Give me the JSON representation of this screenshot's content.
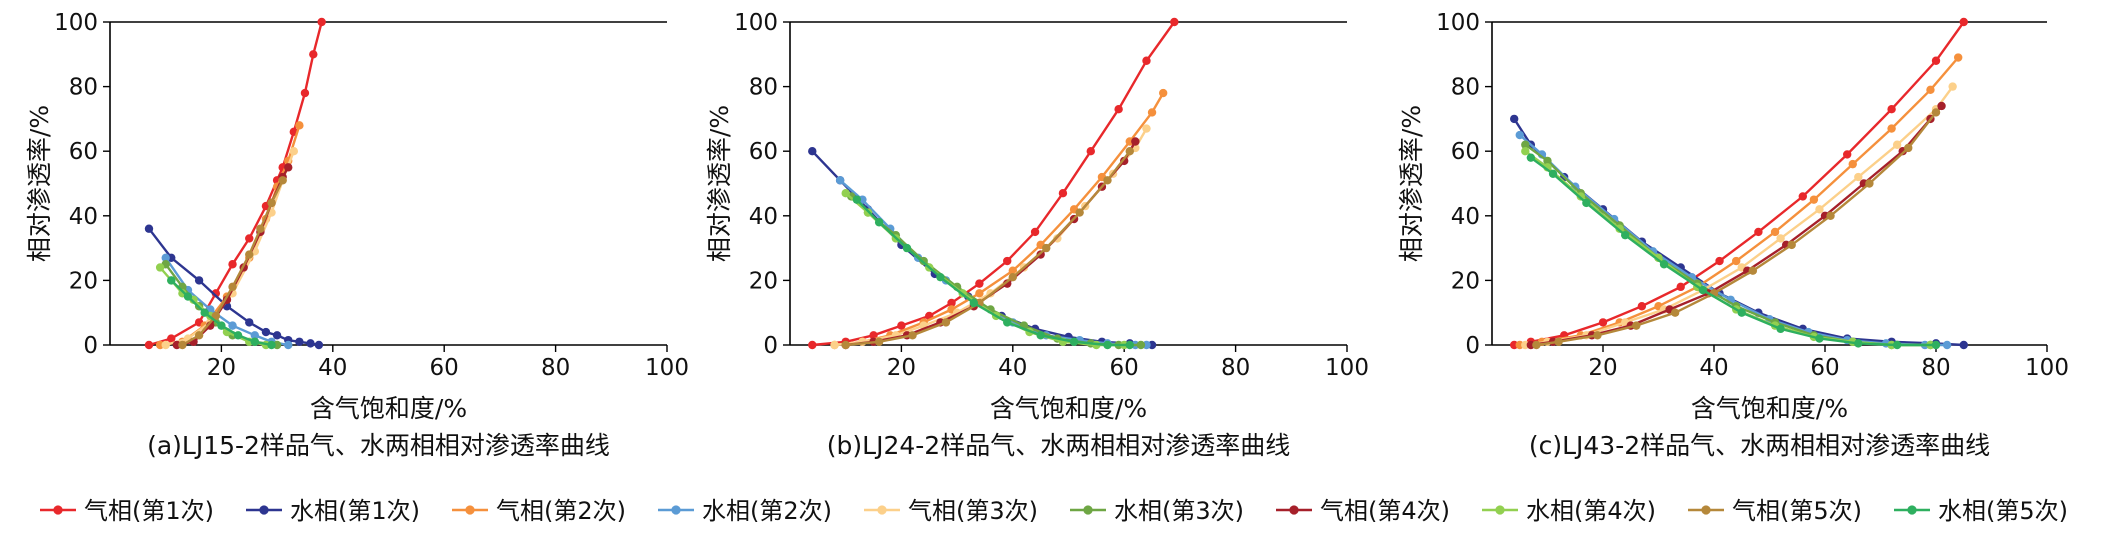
{
  "colors": {
    "gas1": "#e8282b",
    "water1": "#2d3590",
    "gas2": "#f5903c",
    "water2": "#5b9bd5",
    "gas3": "#fcd08a",
    "water3": "#6ea644",
    "gas4": "#a6202a",
    "water4": "#92d050",
    "gas5": "#b5883a",
    "water5": "#2eaf5f"
  },
  "legend": [
    {
      "label": "气相(第1次)",
      "color_key": "gas1"
    },
    {
      "label": "水相(第1次)",
      "color_key": "water1"
    },
    {
      "label": "气相(第2次)",
      "color_key": "gas2"
    },
    {
      "label": "水相(第2次)",
      "color_key": "water2"
    },
    {
      "label": "气相(第3次)",
      "color_key": "gas3"
    },
    {
      "label": "水相(第3次)",
      "color_key": "water3"
    },
    {
      "label": "气相(第4次)",
      "color_key": "gas4"
    },
    {
      "label": "水相(第4次)",
      "color_key": "water4"
    },
    {
      "label": "气相(第5次)",
      "color_key": "gas5"
    },
    {
      "label": "水相(第5次)",
      "color_key": "water5"
    }
  ],
  "chart_data": [
    {
      "type": "line",
      "caption": "(a)LJ15-2样品气、水两相相对渗透率曲线",
      "xlabel": "含气饱和度/%",
      "ylabel": "相对渗透率/%",
      "xlim": [
        0,
        100
      ],
      "ylim": [
        0,
        100
      ],
      "xticks": [
        20,
        40,
        60,
        80,
        100
      ],
      "yticks": [
        0,
        20,
        40,
        60,
        80,
        100
      ],
      "series": [
        {
          "name": "气相(第1次)",
          "color_key": "gas1",
          "x": [
            7,
            11,
            16,
            19,
            22,
            25,
            28,
            30,
            31,
            33,
            35,
            36.5,
            38
          ],
          "y": [
            0,
            2,
            7,
            16,
            25,
            33,
            43,
            51,
            55,
            66,
            78,
            90,
            100
          ]
        },
        {
          "name": "水相(第1次)",
          "color_key": "water1",
          "x": [
            7,
            11,
            16,
            21,
            25,
            28,
            30,
            32,
            34,
            36,
            37.5
          ],
          "y": [
            36,
            27,
            20,
            12,
            7,
            4,
            3,
            1.5,
            1,
            0.5,
            0
          ]
        },
        {
          "name": "气相(第2次)",
          "color_key": "gas2",
          "x": [
            9,
            13,
            17,
            21,
            25,
            28,
            30,
            32,
            34
          ],
          "y": [
            0,
            1,
            6,
            15,
            27,
            39,
            49,
            57,
            68
          ]
        },
        {
          "name": "水相(第2次)",
          "color_key": "water2",
          "x": [
            10,
            14,
            18,
            22,
            26,
            29,
            32
          ],
          "y": [
            27,
            17,
            11,
            6,
            3,
            1,
            0
          ]
        },
        {
          "name": "气相(第3次)",
          "color_key": "gas3",
          "x": [
            10,
            14,
            18,
            22,
            26,
            29,
            31,
            33
          ],
          "y": [
            0,
            2,
            7,
            16,
            29,
            41,
            51,
            60
          ]
        },
        {
          "name": "水相(第3次)",
          "color_key": "water3",
          "x": [
            10,
            13,
            16,
            19,
            22,
            26,
            30
          ],
          "y": [
            25,
            18,
            12,
            7,
            3,
            1,
            0
          ]
        },
        {
          "name": "气相(第4次)",
          "color_key": "gas4",
          "x": [
            12,
            15,
            18,
            21,
            24,
            27,
            29,
            31,
            32
          ],
          "y": [
            0,
            1,
            6,
            14,
            24,
            35,
            44,
            52,
            55
          ]
        },
        {
          "name": "水相(第4次)",
          "color_key": "water4",
          "x": [
            9,
            11,
            13,
            15,
            18,
            21,
            25,
            28
          ],
          "y": [
            24,
            20,
            16,
            14,
            9,
            4,
            1,
            0
          ]
        },
        {
          "name": "气相(第5次)",
          "color_key": "gas5",
          "x": [
            13,
            16,
            19,
            22,
            25,
            27,
            29,
            31
          ],
          "y": [
            0,
            3,
            9,
            18,
            28,
            36,
            44,
            51
          ]
        },
        {
          "name": "水相(第5次)",
          "color_key": "water5",
          "x": [
            11,
            14,
            17,
            20,
            23,
            26,
            29
          ],
          "y": [
            20,
            15,
            10,
            6,
            3,
            1,
            0
          ]
        }
      ]
    },
    {
      "type": "line",
      "caption": "(b)LJ24-2样品气、水两相相对渗透率曲线",
      "xlabel": "含气饱和度/%",
      "ylabel": "相对渗透率/%",
      "xlim": [
        0,
        100
      ],
      "ylim": [
        0,
        100
      ],
      "xticks": [
        20,
        40,
        60,
        80,
        100
      ],
      "yticks": [
        0,
        20,
        40,
        60,
        80,
        100
      ],
      "series": [
        {
          "name": "气相(第1次)",
          "color_key": "gas1",
          "x": [
            4,
            10,
            15,
            20,
            25,
            29,
            34,
            39,
            44,
            49,
            54,
            59,
            64,
            69
          ],
          "y": [
            0,
            1,
            3,
            6,
            9,
            13,
            19,
            26,
            35,
            47,
            60,
            73,
            88,
            100
          ]
        },
        {
          "name": "水相(第1次)",
          "color_key": "water1",
          "x": [
            4,
            9,
            14,
            20,
            26,
            32,
            38,
            44,
            50,
            56,
            61,
            65
          ],
          "y": [
            60,
            51,
            42,
            31,
            22,
            15,
            9,
            5,
            2.5,
            1,
            0.5,
            0
          ]
        },
        {
          "name": "气相(第2次)",
          "color_key": "gas2",
          "x": [
            8,
            13,
            18,
            24,
            29,
            34,
            40,
            45,
            51,
            56,
            61,
            65,
            67
          ],
          "y": [
            0,
            1,
            3,
            7,
            11,
            16,
            23,
            31,
            42,
            52,
            63,
            72,
            78
          ]
        },
        {
          "name": "水相(第2次)",
          "color_key": "water2",
          "x": [
            9,
            13,
            18,
            23,
            28,
            34,
            40,
            46,
            52,
            57,
            62,
            64
          ],
          "y": [
            51,
            45,
            36,
            27,
            20,
            13,
            7,
            3,
            1.5,
            0.5,
            0,
            0
          ]
        },
        {
          "name": "气相(第3次)",
          "color_key": "gas3",
          "x": [
            8,
            13,
            19,
            24,
            30,
            36,
            42,
            48,
            53,
            58,
            62,
            64
          ],
          "y": [
            0,
            1,
            3,
            6,
            10,
            16,
            24,
            33,
            43,
            53,
            61,
            67
          ]
        },
        {
          "name": "水相(第3次)",
          "color_key": "water3",
          "x": [
            11,
            14,
            19,
            24,
            30,
            36,
            42,
            48,
            54,
            59,
            63
          ],
          "y": [
            46,
            41,
            34,
            26,
            18,
            11,
            6,
            2,
            0.5,
            0,
            0
          ]
        },
        {
          "name": "气相(第4次)",
          "color_key": "gas4",
          "x": [
            10,
            15,
            21,
            27,
            33,
            39,
            45,
            51,
            56,
            60,
            62
          ],
          "y": [
            0,
            1,
            3,
            7,
            12,
            19,
            28,
            39,
            49,
            57,
            63
          ]
        },
        {
          "name": "水相(第4次)",
          "color_key": "water4",
          "x": [
            10,
            14,
            19,
            25,
            31,
            37,
            43,
            49,
            55,
            60
          ],
          "y": [
            47,
            41,
            33,
            24,
            16,
            9,
            4,
            1,
            0,
            0
          ]
        },
        {
          "name": "气相(第5次)",
          "color_key": "gas5",
          "x": [
            10,
            16,
            22,
            28,
            34,
            40,
            46,
            52,
            57,
            61
          ],
          "y": [
            0,
            1,
            3,
            7,
            13,
            21,
            30,
            41,
            51,
            60
          ]
        },
        {
          "name": "水相(第5次)",
          "color_key": "water5",
          "x": [
            12,
            16,
            21,
            27,
            33,
            39,
            45,
            51,
            57,
            61
          ],
          "y": [
            45,
            38,
            30,
            21,
            13,
            7,
            3,
            1,
            0,
            0
          ]
        }
      ]
    },
    {
      "type": "line",
      "caption": "(c)LJ43-2样品气、水两相相对渗透率曲线",
      "xlabel": "含气饱和度/%",
      "ylabel": "相对渗透率/%",
      "xlim": [
        0,
        100
      ],
      "ylim": [
        0,
        100
      ],
      "xticks": [
        20,
        40,
        60,
        80,
        100
      ],
      "yticks": [
        0,
        20,
        40,
        60,
        80,
        100
      ],
      "series": [
        {
          "name": "气相(第1次)",
          "color_key": "gas1",
          "x": [
            4,
            7,
            13,
            20,
            27,
            34,
            41,
            48,
            56,
            64,
            72,
            80,
            85
          ],
          "y": [
            0,
            1,
            3,
            7,
            12,
            18,
            26,
            35,
            46,
            59,
            73,
            88,
            100
          ]
        },
        {
          "name": "水相(第1次)",
          "color_key": "water1",
          "x": [
            4,
            7,
            13,
            20,
            27,
            34,
            41,
            48,
            56,
            64,
            72,
            80,
            85
          ],
          "y": [
            70,
            62,
            52,
            42,
            32,
            24,
            16,
            10,
            5,
            2,
            1,
            0.5,
            0
          ]
        },
        {
          "name": "气相(第2次)",
          "color_key": "gas2",
          "x": [
            5,
            9,
            16,
            23,
            30,
            37,
            44,
            51,
            58,
            65,
            72,
            79,
            84
          ],
          "y": [
            0,
            1,
            3,
            7,
            12,
            18,
            26,
            35,
            45,
            56,
            67,
            79,
            89
          ]
        },
        {
          "name": "水相(第2次)",
          "color_key": "water2",
          "x": [
            5,
            9,
            15,
            22,
            29,
            36,
            43,
            50,
            57,
            64,
            71,
            78,
            82
          ],
          "y": [
            65,
            59,
            49,
            39,
            29,
            21,
            14,
            8,
            4,
            1.5,
            0.5,
            0,
            0
          ]
        },
        {
          "name": "气相(第3次)",
          "color_key": "gas3",
          "x": [
            6,
            10,
            17,
            24,
            31,
            38,
            45,
            52,
            59,
            66,
            73,
            80,
            83
          ],
          "y": [
            0,
            1,
            3,
            7,
            11,
            17,
            24,
            33,
            42,
            52,
            62,
            73,
            80
          ]
        },
        {
          "name": "水相(第3次)",
          "color_key": "water3",
          "x": [
            6,
            10,
            16,
            23,
            30,
            37,
            44,
            51,
            58,
            65,
            72,
            79
          ],
          "y": [
            62,
            57,
            47,
            37,
            27,
            19,
            12,
            7,
            3,
            1,
            0,
            0
          ]
        },
        {
          "name": "气相(第4次)",
          "color_key": "gas4",
          "x": [
            7,
            11,
            18,
            25,
            32,
            39,
            46,
            53,
            60,
            67,
            74,
            79,
            81
          ],
          "y": [
            0,
            1,
            3,
            6,
            11,
            16,
            23,
            31,
            40,
            50,
            60,
            70,
            74
          ]
        },
        {
          "name": "水相(第4次)",
          "color_key": "water4",
          "x": [
            6,
            10,
            16,
            23,
            30,
            37,
            44,
            51,
            58,
            65,
            72,
            79
          ],
          "y": [
            60,
            55,
            46,
            36,
            27,
            18,
            11,
            6,
            2.5,
            1,
            0,
            0
          ]
        },
        {
          "name": "气相(第5次)",
          "color_key": "gas5",
          "x": [
            8,
            12,
            19,
            26,
            33,
            40,
            47,
            54,
            61,
            68,
            75,
            80
          ],
          "y": [
            0,
            1,
            3,
            6,
            10,
            16,
            23,
            31,
            40,
            50,
            61,
            72
          ]
        },
        {
          "name": "水相(第5次)",
          "color_key": "water5",
          "x": [
            7,
            11,
            17,
            24,
            31,
            38,
            45,
            52,
            59,
            66,
            73,
            80
          ],
          "y": [
            58,
            53,
            44,
            34,
            25,
            17,
            10,
            5,
            2,
            0.5,
            0,
            0
          ]
        }
      ]
    }
  ]
}
